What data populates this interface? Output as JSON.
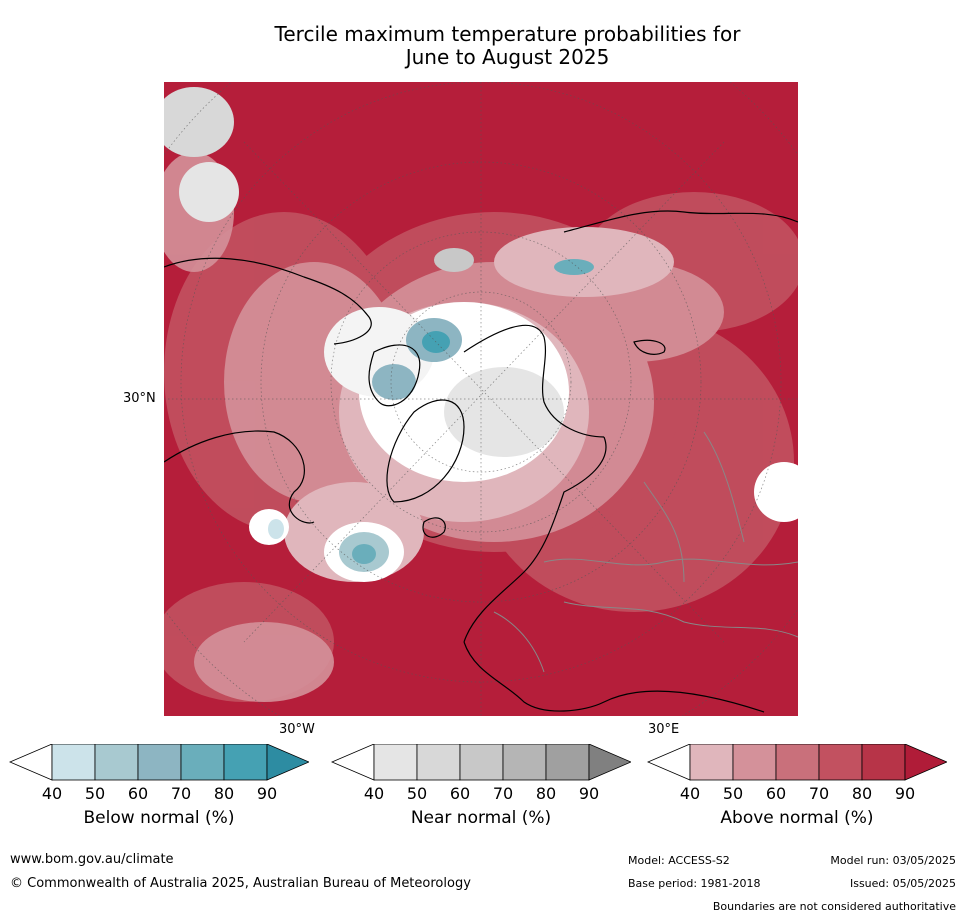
{
  "title": {
    "line1": "Tercile maximum temperature probabilities for",
    "line2": "June to August 2025"
  },
  "map": {
    "lat_label": "30°N",
    "lon_labels": [
      "30°W",
      "30°E"
    ]
  },
  "colorbars": [
    {
      "label": "Below normal (%)",
      "ticks": [
        "40",
        "50",
        "60",
        "70",
        "80",
        "90"
      ],
      "colors": [
        "#ffffff",
        "#cce3ea",
        "#a8c9d0",
        "#8db5c2",
        "#6aaebb",
        "#45a1b3",
        "#2d8ca2"
      ]
    },
    {
      "label": "Near normal (%)",
      "ticks": [
        "40",
        "50",
        "60",
        "70",
        "80",
        "90"
      ],
      "colors": [
        "#ffffff",
        "#e5e5e5",
        "#d8d8d8",
        "#c8c8c8",
        "#b5b5b5",
        "#a0a0a0",
        "#808080"
      ]
    },
    {
      "label": "Above normal (%)",
      "ticks": [
        "40",
        "50",
        "60",
        "70",
        "80",
        "90"
      ],
      "colors": [
        "#ffffff",
        "#e0b6bc",
        "#d4919a",
        "#c9707b",
        "#c25160",
        "#b73448",
        "#b01c38"
      ]
    }
  ],
  "footer": {
    "url": "www.bom.gov.au/climate",
    "copyright": "© Commonwealth of Australia 2025, Australian Bureau of Meteorology",
    "model": "Model: ACCESS-S2",
    "base_period": "Base period: 1981-2018",
    "model_run": "Model run: 03/05/2025",
    "issued": "Issued: 05/05/2025",
    "disclaimer": "Boundaries are not considered authoritative"
  }
}
